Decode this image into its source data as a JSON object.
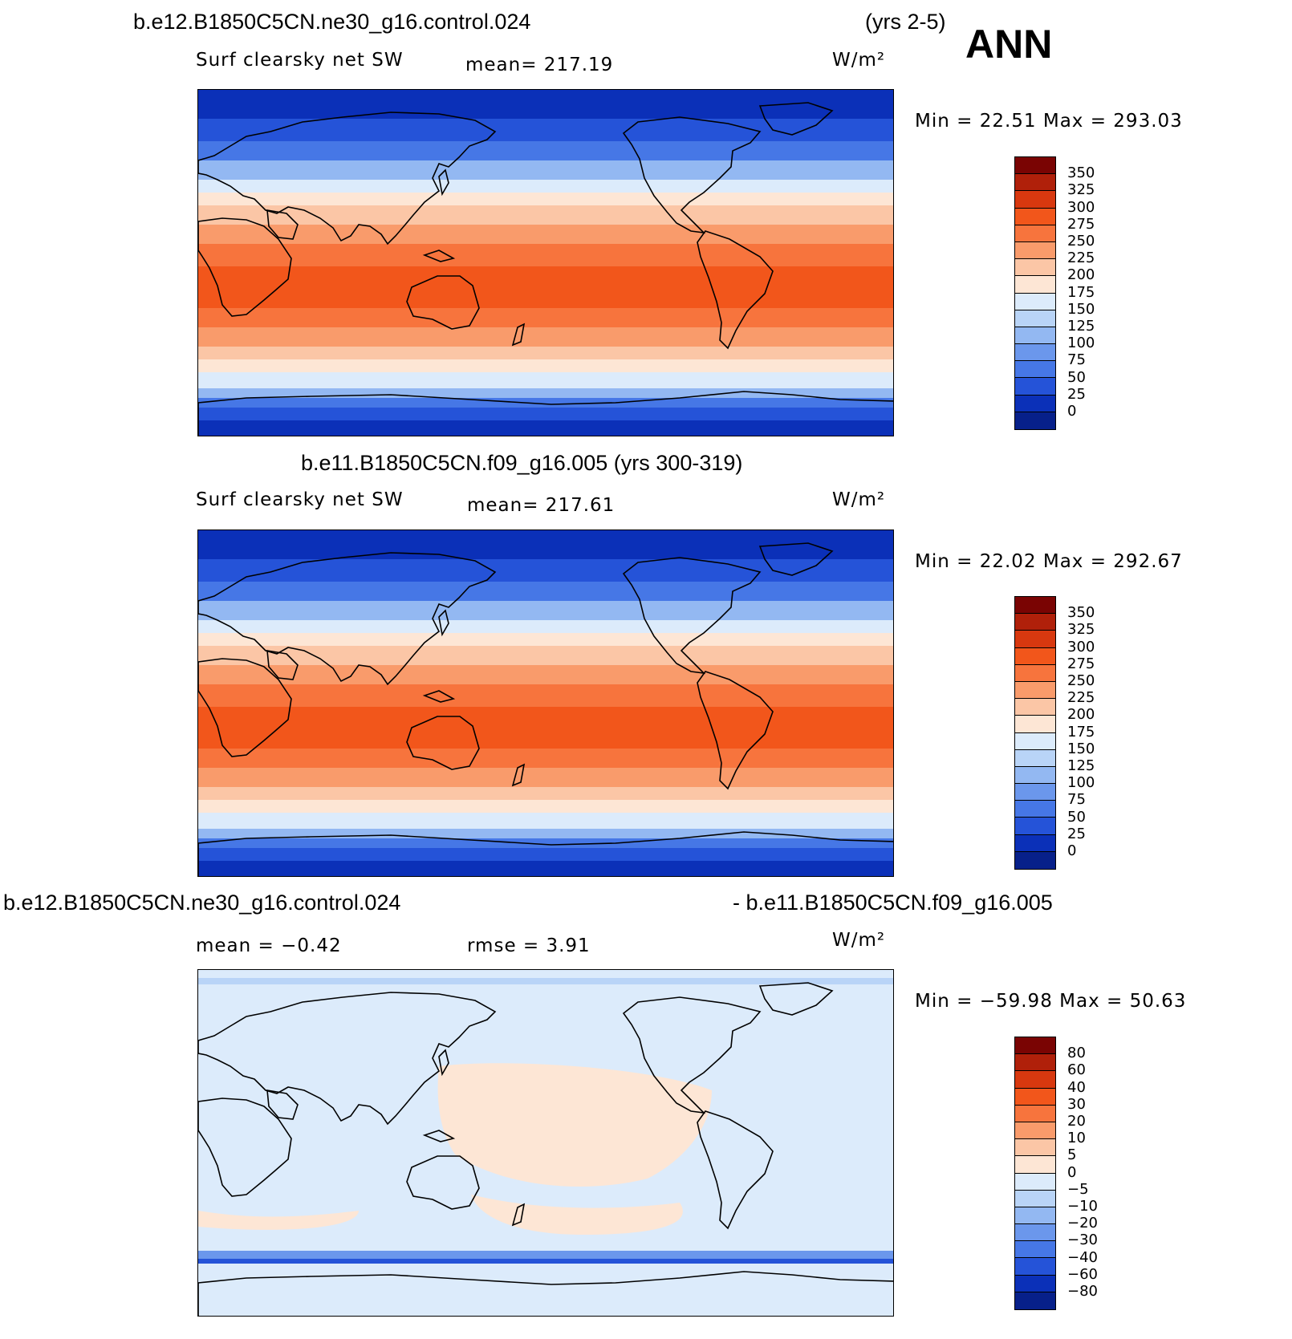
{
  "header": {
    "case1_title": "b.e12.B1850C5CN.ne30_g16.control.024",
    "case1_years": "(yrs 2-5)",
    "season": "ANN"
  },
  "panels": [
    {
      "variable": "Surf clearsky net SW",
      "mean": "mean= 217.19",
      "units": "W/m²",
      "minmax": "Min =   22.51 Max = 293.03",
      "colorbar": [
        "350",
        "325",
        "300",
        "275",
        "250",
        "225",
        "200",
        "175",
        "150",
        "125",
        "100",
        "75",
        "50",
        "25",
        "0"
      ]
    },
    {
      "title": "b.e11.B1850C5CN.f09_g16.005 (yrs 300-319)",
      "variable": "Surf clearsky net SW",
      "mean": "mean= 217.61",
      "units": "W/m²",
      "minmax": "Min =   22.02 Max = 292.67",
      "colorbar": [
        "350",
        "325",
        "300",
        "275",
        "250",
        "225",
        "200",
        "175",
        "150",
        "125",
        "100",
        "75",
        "50",
        "25",
        "0"
      ]
    },
    {
      "title_left": "b.e12.B1850C5CN.ne30_g16.control.024",
      "title_right": "- b.e11.B1850C5CN.f09_g16.005",
      "mean": "mean =   −0.42",
      "rmse": "rmse =     3.91",
      "units": "W/m²",
      "minmax": "Min = −59.98 Max =   50.63",
      "colorbar": [
        "80",
        "60",
        "40",
        "30",
        "20",
        "10",
        "5",
        "0",
        "−5",
        "−10",
        "−20",
        "−30",
        "−40",
        "−60",
        "−80"
      ]
    }
  ],
  "colors": {
    "levels": [
      "#7a0403",
      "#b0200a",
      "#d8380f",
      "#f2561b",
      "#f7743d",
      "#f99b6b",
      "#fbc6a6",
      "#fde6d5",
      "#dcebfb",
      "#b9d4f7",
      "#93b8f2",
      "#6b97ec",
      "#4677e6",
      "#2553d8",
      "#0b30b8",
      "#07208a"
    ],
    "coast": "#000000"
  }
}
